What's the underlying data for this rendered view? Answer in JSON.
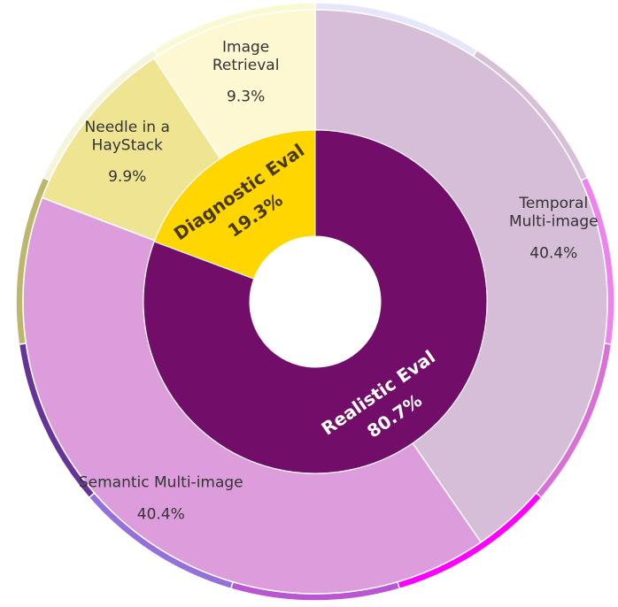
{
  "chart_data": {
    "type": "pie",
    "style": "sunburst",
    "inner_ring": [
      {
        "label": "Diagnostic Eval",
        "pct_label": "19.3%",
        "value": 19.3,
        "color": "#FFD600",
        "text_color": "#4a3a00"
      },
      {
        "label": "Realistic Eval",
        "pct_label": "80.7%",
        "value": 80.7,
        "color": "#720E6A",
        "text_color": "#ffffff"
      }
    ],
    "outer_ring": [
      {
        "label": [
          "Temporal",
          "Multi-image"
        ],
        "pct_label": "40.4%",
        "value": 40.4,
        "color": "#D6BDD8",
        "parent": "Realistic Eval"
      },
      {
        "label": [
          "Semantic Multi-image"
        ],
        "pct_label": "40.4%",
        "value": 40.4,
        "color": "#DD9CDC",
        "parent": "Realistic Eval"
      },
      {
        "label": [
          "Needle in a",
          "HayStack"
        ],
        "pct_label": "9.9%",
        "value": 9.9,
        "color": "#EFE492",
        "parent": "Diagnostic Eval"
      },
      {
        "label": [
          "Image",
          "Retrieval"
        ],
        "pct_label": "9.3%",
        "value": 9.3,
        "color": "#FEF8D2",
        "parent": "Diagnostic Eval"
      }
    ],
    "rim_colors": [
      "#E6E6FA",
      "#D8BFD8",
      "#EE82EE",
      "#DA70D6",
      "#FF00FF",
      "#BA55D3",
      "#9370DB",
      "#663399",
      "#BDB76B",
      "#F5F5DC",
      "#FAFAD2"
    ]
  }
}
